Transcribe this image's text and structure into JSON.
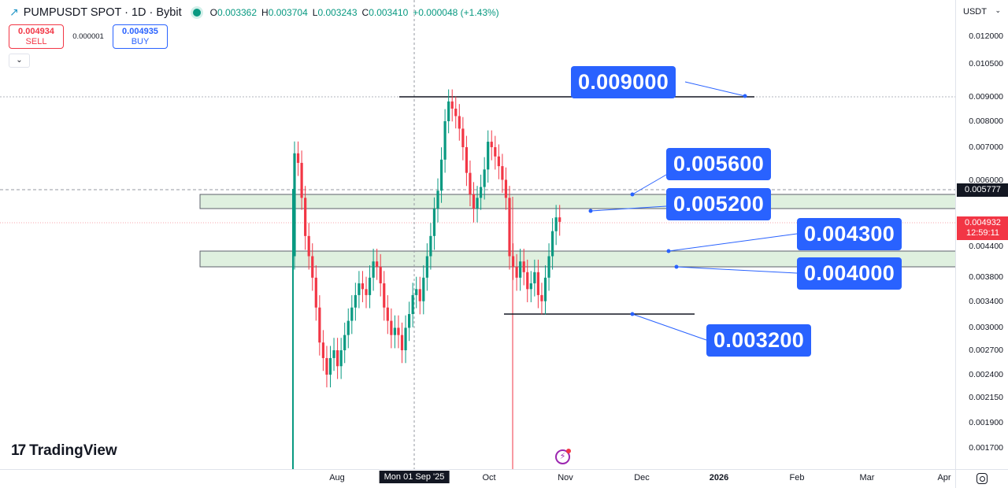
{
  "header": {
    "symbol_title": "PUMPUSDT SPOT · 1D · Bybit",
    "ohlc": {
      "open_label": "O",
      "open": "0.003362",
      "high_label": "H",
      "high": "0.003704",
      "low_label": "L",
      "low": "0.003243",
      "close_label": "C",
      "close": "0.003410",
      "change": "+0.000048 (+1.43%)"
    },
    "status_color": "#089981"
  },
  "trade": {
    "sell_price": "0.004934",
    "sell_label": "SELL",
    "spread": "0.000001",
    "buy_price": "0.004935",
    "buy_label": "BUY",
    "collapse_icon": "chevron-down-icon"
  },
  "price_axis": {
    "currency": "USDT",
    "ticks": [
      "0.012000",
      "0.010500",
      "0.009000",
      "0.008000",
      "0.007000",
      "0.006000",
      "0.004400",
      "0.003800",
      "0.003400",
      "0.003000",
      "0.002700",
      "0.002400",
      "0.002150",
      "0.001900",
      "0.001700"
    ],
    "last_price_label": "0.005777",
    "current_price_label": "0.004932",
    "countdown": "12:59:11"
  },
  "time_axis": {
    "labels": [
      "Aug",
      "Oct",
      "Nov",
      "Dec",
      "2026",
      "Feb",
      "Mar",
      "Apr"
    ],
    "crosshair_label": "Mon 01 Sep '25"
  },
  "annotations": {
    "r1": "0.009000",
    "r2": "0.005600",
    "r3": "0.005200",
    "s1": "0.004300",
    "s2": "0.004000",
    "s3": "0.003200"
  },
  "branding": {
    "logo_mark": "17",
    "logo_text": "TradingView"
  },
  "colors": {
    "up": "#089981",
    "down": "#f23645",
    "tag": "#2962ff",
    "zone": "#dff0df"
  },
  "chart_data": {
    "type": "candlestick",
    "title": "PUMPUSDT SPOT · 1D · Bybit",
    "xlabel": "",
    "ylabel": "USDT",
    "ylim": [
      0.0016,
      0.0125
    ],
    "y_scale": "log",
    "x_range": [
      "Jul 2025",
      "Apr 2026"
    ],
    "horizontal_levels": [
      {
        "value": 0.009,
        "type": "resistance line"
      },
      {
        "value": 0.0056,
        "type": "zone top"
      },
      {
        "value": 0.0052,
        "type": "zone bottom"
      },
      {
        "value": 0.0043,
        "type": "zone top"
      },
      {
        "value": 0.004,
        "type": "zone bottom"
      },
      {
        "value": 0.0032,
        "type": "support line"
      }
    ],
    "last_price": 0.004932,
    "marked_price": 0.005777,
    "legend": {
      "open": 0.003362,
      "high": 0.003704,
      "low": 0.003243,
      "close": 0.00341,
      "change": 4.8e-05,
      "change_pct": 1.43
    },
    "approx_closes": [
      0.0068,
      0.0065,
      0.0055,
      0.0046,
      0.0042,
      0.0038,
      0.0033,
      0.0028,
      0.0026,
      0.0024,
      0.0026,
      0.0027,
      0.0025,
      0.0027,
      0.0029,
      0.0031,
      0.0033,
      0.0035,
      0.0037,
      0.0036,
      0.0035,
      0.0038,
      0.0041,
      0.004,
      0.0037,
      0.0033,
      0.0031,
      0.0029,
      0.003,
      0.0029,
      0.0027,
      0.003,
      0.0032,
      0.0035,
      0.0036,
      0.0034,
      0.0038,
      0.0042,
      0.0046,
      0.0052,
      0.0057,
      0.0066,
      0.008,
      0.0088,
      0.0085,
      0.0082,
      0.0077,
      0.007,
      0.0062,
      0.0056,
      0.0052,
      0.0055,
      0.0058,
      0.0063,
      0.0072,
      0.007,
      0.0067,
      0.0064,
      0.006,
      0.0055,
      0.0042,
      0.004,
      0.0038,
      0.0041,
      0.0039,
      0.0036,
      0.0037,
      0.0039,
      0.0035,
      0.0034,
      0.0038,
      0.0042,
      0.0047,
      0.005,
      0.0049
    ]
  }
}
